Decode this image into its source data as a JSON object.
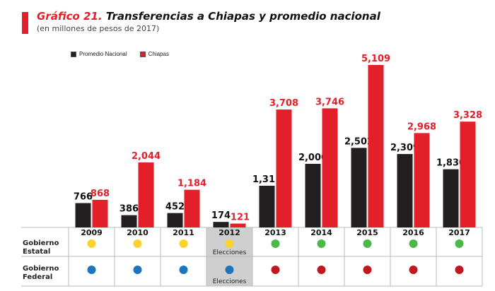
{
  "header": {
    "title_number": "Gráfico 21.",
    "title_text": "Transferencias a Chiapas y promedio nacional",
    "subtitle": "(en millones de pesos de 2017)"
  },
  "colors": {
    "national": "#231f20",
    "chiapas": "#e3202a",
    "pri": "#fcd22c",
    "green": "#4db848",
    "pan_blue": "#1c75bc",
    "morena_red": "#c1171f",
    "election_bg": "#cfcfcf"
  },
  "chart_data": {
    "type": "bar",
    "title": "Gráfico 21. Transferencias a Chiapas y promedio nacional",
    "subtitle": "(en millones de pesos de 2017)",
    "xlabel": "",
    "ylabel": "",
    "ylim": [
      0,
      5109
    ],
    "grid": false,
    "legend_position": "top-left",
    "categories": [
      "2009",
      "2010",
      "2011",
      "2012",
      "2013",
      "2014",
      "2015",
      "2016",
      "2017"
    ],
    "series": [
      {
        "name": "Promedio Nacional",
        "values": [
          766,
          386,
          452,
          174,
          1311,
          2000,
          2502,
          2309,
          1830
        ],
        "labels": [
          "766",
          "386",
          "452",
          "174",
          "1,311",
          "2,000",
          "2,502",
          "2,309",
          "1,830"
        ]
      },
      {
        "name": "Chiapas",
        "values": [
          868,
          2044,
          1184,
          121,
          3708,
          3746,
          5109,
          2968,
          3328
        ],
        "labels": [
          "868",
          "2,044",
          "1,184",
          "121",
          "3,708",
          "3,746",
          "5,109",
          "2,968",
          "3,328"
        ]
      }
    ]
  },
  "legend": [
    {
      "label": "Promedio Nacional",
      "color": "#231f20"
    },
    {
      "label": "Chiapas",
      "color": "#e3202a"
    }
  ],
  "table": {
    "rows": [
      {
        "label_line1": "Gobierno",
        "label_line2": "Estatal",
        "dots": [
          "yellow",
          "yellow",
          "yellow",
          "yellow",
          "green",
          "green",
          "green",
          "green",
          "green"
        ]
      },
      {
        "label_line1": "Gobierno",
        "label_line2": "Federal",
        "dots": [
          "blue",
          "blue",
          "blue",
          "blue",
          "red",
          "red",
          "red",
          "red",
          "red"
        ]
      }
    ],
    "election_year_index": 3,
    "election_label": "Elecciones"
  }
}
